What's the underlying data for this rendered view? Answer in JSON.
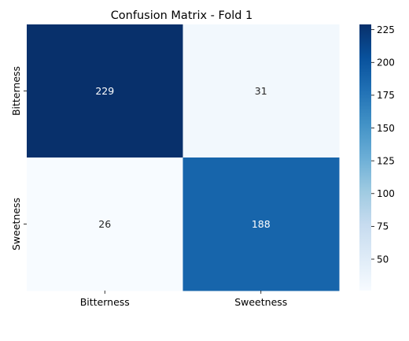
{
  "chart_data": {
    "type": "heatmap",
    "title": "Confusion Matrix - Fold 1",
    "xlabel": "",
    "ylabel": "",
    "x_categories": [
      "Bitterness",
      "Sweetness"
    ],
    "y_categories": [
      "Bitterness",
      "Sweetness"
    ],
    "values": [
      [
        229,
        31
      ],
      [
        26,
        188
      ]
    ],
    "colormap": "Blues",
    "color_min": 26,
    "color_max": 229,
    "colorbar_ticks": [
      50,
      75,
      100,
      125,
      150,
      175,
      200,
      225
    ],
    "annotation_colors": {
      "dark_cell": "#ffffff",
      "light_cell": "#262626"
    },
    "grid": false,
    "legend": "colorbar-right"
  }
}
